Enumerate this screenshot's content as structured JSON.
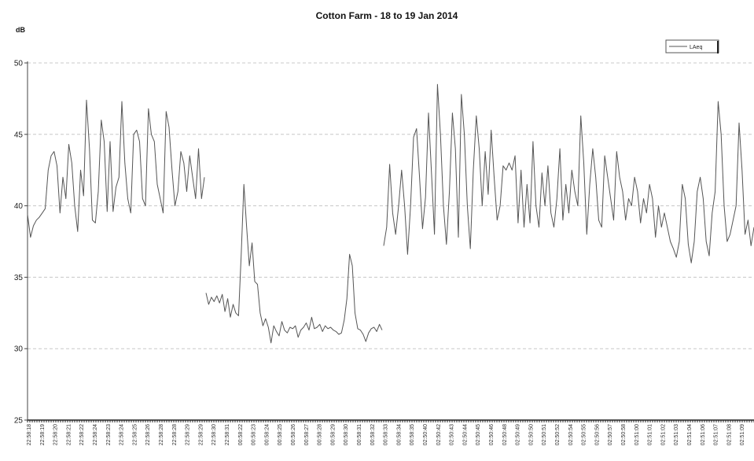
{
  "chart_data": {
    "type": "line",
    "title": "Cotton Farm - 18 to 19 Jan 2014",
    "ylabel": "dB",
    "xlabel": "",
    "ylim": [
      25,
      50
    ],
    "yticks": [
      25,
      30,
      35,
      40,
      45,
      50
    ],
    "grid": "horizontal dashed",
    "legend_position": "top-right",
    "legend": [
      "LAeq"
    ],
    "categories": [
      "22:58:18",
      "22:58:19",
      "22:58:20",
      "22:58:21",
      "22:58:22",
      "22:58:24",
      "22:58:23",
      "22:58:24",
      "22:58:25",
      "22:58:26",
      "22:58:28",
      "22:58:28",
      "22:58:29",
      "22:58:29",
      "22:58:30",
      "22:58:31",
      "00:58:22",
      "00:58:23",
      "00:58:24",
      "00:58:25",
      "00:58:26",
      "00:58:27",
      "00:58:28",
      "00:58:29",
      "00:58:30",
      "00:58:31",
      "00:58:32",
      "00:58:33",
      "00:58:34",
      "00:58:35",
      "02:50:40",
      "02:50:42",
      "02:50:43",
      "02:50:44",
      "02:50:45",
      "02:50:46",
      "02:50:48",
      "02:50:49",
      "02:50:50",
      "02:50:51",
      "02:50:52",
      "02:50:54",
      "02:50:55",
      "02:50:56",
      "02:50:57",
      "02:50:58",
      "02:51:00",
      "02:51:01",
      "02:51:02",
      "02:51:03",
      "02:51:04",
      "02:51:06",
      "02:51:07",
      "02:51:08",
      "02:51:09"
    ],
    "series": [
      {
        "name": "LAeq",
        "color": "#555555",
        "segments": [
          [
            39.4,
            37.8,
            38.6,
            39,
            39.2,
            39.5,
            39.8,
            42.5,
            43.5,
            43.8,
            42.8,
            39.5,
            42,
            40.5,
            44.3,
            43,
            40,
            38.2,
            42.5,
            40.7,
            47.4,
            44,
            39,
            38.8,
            41,
            46,
            44.5,
            39.6,
            44.5,
            39.6,
            41.3,
            42,
            47.3,
            43,
            40.5,
            39.5,
            45,
            45.3,
            44.5,
            40.5,
            40,
            46.8,
            45,
            44.5,
            41.5,
            40.5,
            39.5,
            46.6,
            45.5,
            42.5,
            40,
            41,
            43.8,
            43,
            41,
            43.5,
            42,
            40.5,
            44,
            40.5,
            42
          ],
          [
            33.9,
            33.1,
            33.6,
            33.3,
            33.7,
            33.2,
            33.8,
            32.6,
            33.5,
            32.2,
            33.1,
            32.5,
            32.3,
            36.6,
            41.5,
            38.5,
            35.8,
            37.4,
            34.7,
            34.5,
            32.5,
            31.6,
            32.1,
            31.5,
            30.4,
            31.6,
            31.2,
            30.9,
            31.9,
            31.3,
            31.1,
            31.5,
            31.4,
            31.6,
            30.8,
            31.3,
            31.5,
            31.8,
            31.3,
            32.2,
            31.4,
            31.5,
            31.7,
            31.2,
            31.6,
            31.4,
            31.5,
            31.3,
            31.2,
            31,
            31.1,
            32,
            33.5,
            36.6,
            35.8,
            32.5,
            31.4,
            31.3,
            31,
            30.5,
            31.1,
            31.4,
            31.5,
            31.2,
            31.7,
            31.3
          ],
          [
            37.2,
            38.5,
            42.9,
            39.5,
            38,
            40,
            42.5,
            40,
            36.6,
            40,
            44.8,
            45.4,
            42,
            38.4,
            40.6,
            46.5,
            42.3,
            38,
            48.5,
            45,
            40,
            37.3,
            41,
            46.5,
            44,
            37.8,
            47.8,
            45,
            40,
            37,
            42.5,
            46.3,
            44,
            40,
            43.8,
            40.8,
            45.3,
            42,
            39,
            40,
            42.8,
            42.5,
            43,
            42.5,
            43.5,
            38.8,
            42.5,
            38.5,
            41.5,
            38.8,
            44.5,
            40,
            38.5,
            42.3,
            40,
            42.8,
            39.5,
            38.5,
            40.5,
            44,
            39,
            41.5,
            39.5,
            42.5,
            41,
            40,
            46.3,
            43,
            38,
            41.5,
            44,
            42,
            39,
            38.5,
            43.5,
            42,
            40.5,
            39,
            43.8,
            42,
            41,
            39,
            40.5,
            40,
            42,
            41,
            38.8,
            40.5,
            39.5,
            41.5,
            40.5,
            37.8,
            40,
            38.5,
            39.5,
            38.5,
            37.5,
            37,
            36.4,
            37.5,
            41.5,
            40.5,
            37.3,
            36,
            37.5,
            41,
            42,
            40.5,
            37.5,
            36.5,
            39.5,
            41,
            47.3,
            45,
            40,
            37.5,
            38,
            39,
            40,
            45.8,
            42.5,
            38,
            39,
            37.2,
            38.5
          ]
        ]
      }
    ]
  }
}
